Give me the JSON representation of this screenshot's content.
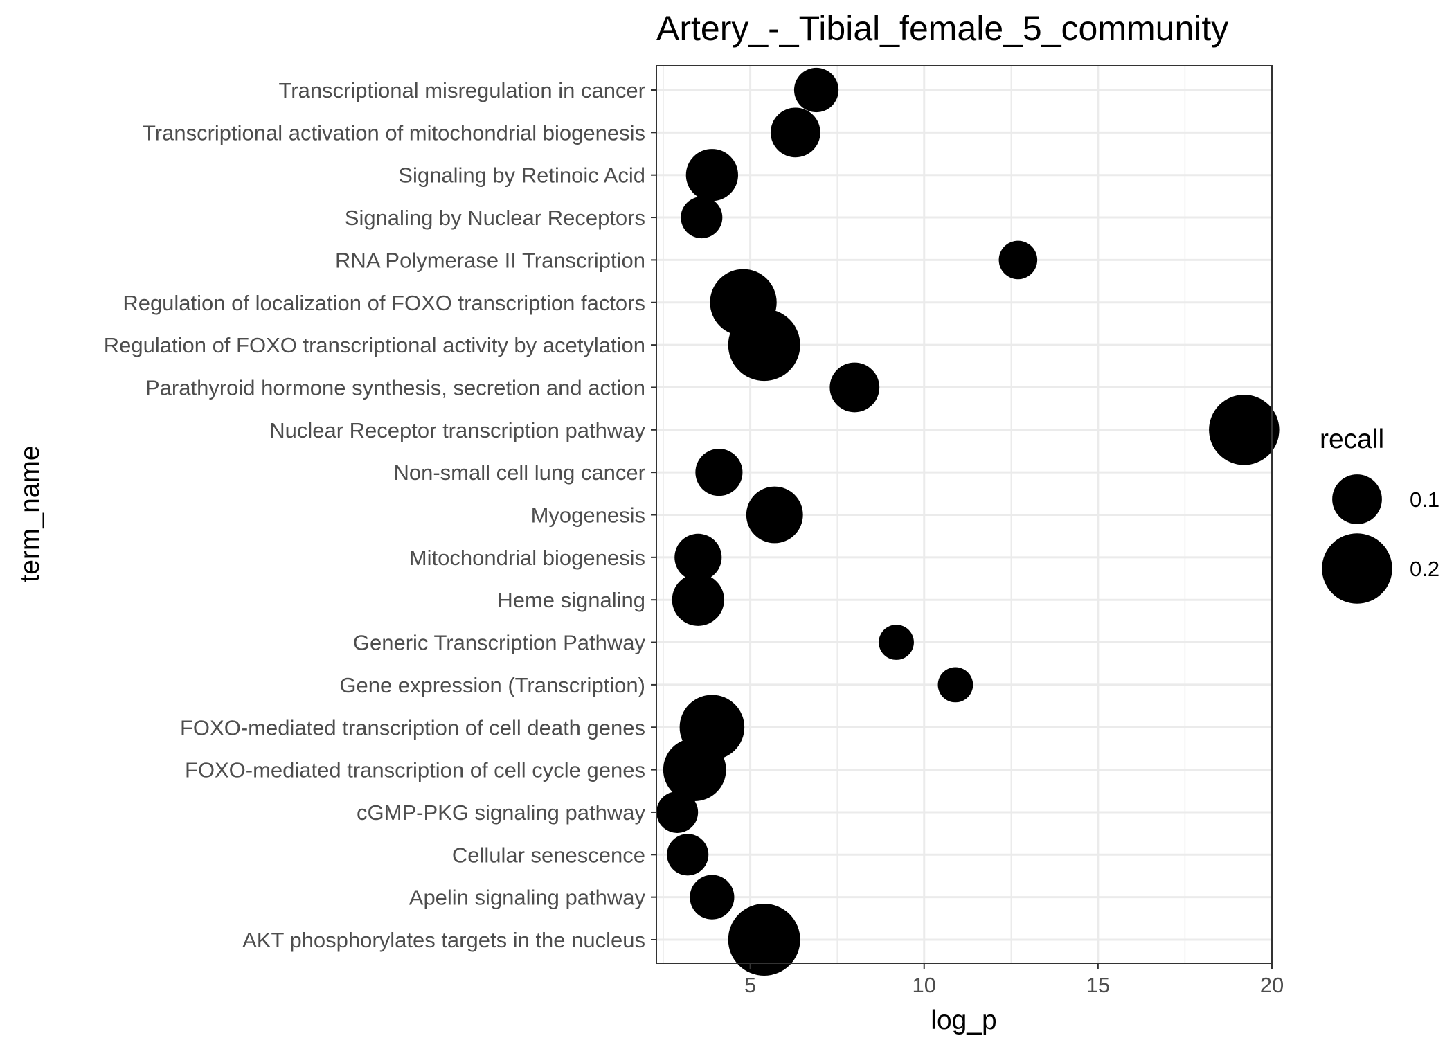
{
  "chart_data": {
    "type": "scatter",
    "title": "Artery_-_Tibial_female_5_community",
    "xlabel": "log_p",
    "ylabel": "term_name",
    "xlim": [
      2.3,
      20
    ],
    "xticks": [
      5,
      10,
      15,
      20
    ],
    "xtick_labels": [
      "5",
      "10",
      "15",
      "20"
    ],
    "grid": true,
    "categories": [
      "Transcriptional misregulation in cancer",
      "Transcriptional activation of mitochondrial biogenesis",
      "Signaling by Retinoic Acid",
      "Signaling by Nuclear Receptors",
      "RNA Polymerase II Transcription",
      "Regulation of localization of FOXO transcription factors",
      "Regulation of FOXO transcriptional activity by acetylation",
      "Parathyroid hormone synthesis, secretion and action",
      "Nuclear Receptor transcription pathway",
      "Non-small cell lung cancer",
      "Myogenesis",
      "Mitochondrial biogenesis",
      "Heme signaling",
      "Generic Transcription Pathway",
      "Gene expression (Transcription)",
      "FOXO-mediated transcription of cell death genes",
      "FOXO-mediated transcription of cell cycle genes",
      "cGMP-PKG signaling pathway",
      "Cellular senescence",
      "Apelin signaling pathway",
      "AKT phosphorylates targets in the nucleus"
    ],
    "x": [
      6.9,
      6.3,
      3.9,
      3.6,
      12.7,
      4.8,
      5.4,
      8.0,
      19.2,
      4.1,
      5.7,
      3.5,
      3.5,
      9.2,
      10.9,
      3.9,
      3.4,
      2.9,
      3.2,
      3.9,
      5.4
    ],
    "recall": [
      0.08,
      0.1,
      0.11,
      0.07,
      0.06,
      0.18,
      0.21,
      0.1,
      0.2,
      0.09,
      0.13,
      0.09,
      0.11,
      0.05,
      0.05,
      0.17,
      0.16,
      0.07,
      0.07,
      0.08,
      0.21
    ],
    "legend": {
      "title": "recall",
      "position": "right",
      "values": [
        0.1,
        0.2
      ],
      "labels": [
        "0.1",
        "0.2"
      ]
    },
    "colors": {
      "point": "#000000",
      "grid": "#ebebeb",
      "panel_border": "#333333",
      "tick_text": "#4d4d4d"
    }
  }
}
